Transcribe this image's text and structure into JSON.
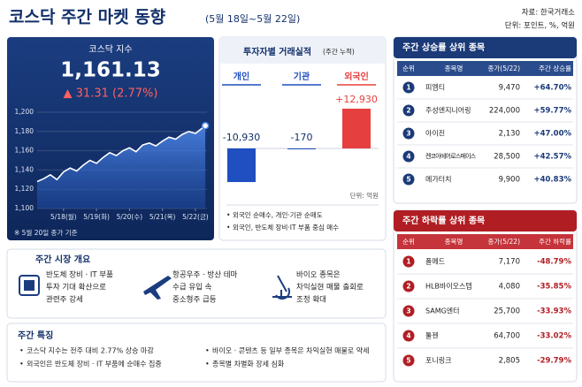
{
  "header": {
    "title": "코스닥 주간 마켓 동향",
    "subtitle": "(5월 18일~5월 22일)",
    "source": "자료: 한국거래소",
    "unit": "단위: 포인트, %, 억원"
  },
  "chart_data": [
    {
      "type": "line",
      "title": "코스닥 지수",
      "index_value": "1,161.13",
      "change": "▲ 31.31 (2.77%)",
      "note": "※ 5월 20일 종가 기준",
      "color": "#ffffff",
      "grid": true,
      "x": [
        -0.8,
        -0.6,
        -0.4,
        -0.2,
        0,
        0.2,
        0.4,
        0.6,
        0.8,
        1,
        1.2,
        1.4,
        1.6,
        1.8,
        2,
        2.2,
        2.4,
        2.6,
        2.8,
        3,
        3.2,
        3.4,
        3.6,
        3.8,
        4,
        4.3
      ],
      "values": [
        1128,
        1131,
        1135,
        1130,
        1138,
        1142,
        1139,
        1145,
        1150,
        1147,
        1153,
        1158,
        1155,
        1160,
        1163,
        1159,
        1166,
        1168,
        1165,
        1170,
        1174,
        1172,
        1177,
        1180,
        1178,
        1186
      ],
      "xlim": [
        -0.8,
        4.35
      ],
      "ylim": [
        1100,
        1200
      ],
      "xticks": [
        {
          "value": 0,
          "label": "5/18(월)"
        },
        {
          "value": 1,
          "label": "5/19(화)"
        },
        {
          "value": 2,
          "label": "5/20(수)"
        },
        {
          "value": 3,
          "label": "5/21(목)"
        },
        {
          "value": 4,
          "label": "5/22(금)"
        }
      ],
      "yticks": [
        {
          "value": 1100,
          "label": "1,100"
        },
        {
          "value": 1120,
          "label": "1,120"
        },
        {
          "value": 1140,
          "label": "1,140"
        },
        {
          "value": 1160,
          "label": "1,160"
        },
        {
          "value": 1180,
          "label": "1,180"
        },
        {
          "value": 1200,
          "label": "1,200"
        }
      ]
    },
    {
      "type": "bar",
      "title": "투자자별 거래실적",
      "subtitle": "(주간 누적)",
      "categories": [
        "개인",
        "기관",
        "외국인"
      ],
      "values": [
        -10930,
        -170,
        12930
      ],
      "value_labels": [
        "-10,930",
        "-170",
        "+12,930"
      ],
      "colors": [
        "#1f4fc1",
        "#1f4fc1",
        "#e5403f"
      ],
      "unit": "단위: 억원",
      "notes": [
        "외국인 순매수, 개인·기관 순매도",
        "외국인, 반도체 장비·IT 부품 중심 매수"
      ]
    }
  ],
  "gainers": {
    "title": "주간 상승률 상위 종목",
    "columns": [
      "순위",
      "종목명",
      "종가(5/22)",
      "주간 상승률"
    ],
    "rows": [
      [
        "1",
        "피엠티",
        "9,470",
        "+64.70%"
      ],
      [
        "2",
        "주성엔지니어링",
        "224,000",
        "+59.77%"
      ],
      [
        "3",
        "아이진",
        "2,130",
        "+47.00%"
      ],
      [
        "4",
        "켄코아에어로스페이스",
        "28,500",
        "+42.57%"
      ],
      [
        "5",
        "메가터치",
        "9,900",
        "+40.83%"
      ]
    ]
  },
  "losers": {
    "title": "주간 하락률 상위 종목",
    "columns": [
      "순위",
      "종목명",
      "종가(5/22)",
      "주간 하락률"
    ],
    "rows": [
      [
        "1",
        "폴메드",
        "7,170",
        "-48.79%"
      ],
      [
        "2",
        "HLB바이오스텝",
        "4,080",
        "-35.85%"
      ],
      [
        "3",
        "SAMG엔터",
        "25,700",
        "-33.93%"
      ],
      [
        "4",
        "툴젠",
        "64,700",
        "-33.02%"
      ],
      [
        "5",
        "포니링크",
        "2,805",
        "-29.79%"
      ]
    ]
  },
  "overview": {
    "title": "주간 시장 개요",
    "items": [
      [
        "반도체 장비 · IT 부품",
        "투자 기대 확산으로",
        "관련주 강세"
      ],
      [
        "항공우주 · 방산 테마",
        "수급 유입 속",
        "중소형주 급등"
      ],
      [
        "바이오 종목은",
        "차익실현 매물 출회로",
        "조정 확대"
      ]
    ]
  },
  "features": {
    "title": "주간 특징",
    "items": [
      "코스닥 지수는 전주 대비 2.77% 상승 마감",
      "외국인은 반도체 장비 · IT 부품에 순매수 집중",
      "바이오 · 콘텐츠 등 일부 종목은 차익실현 매물로 약세",
      "종목별 차별화 장세 심화"
    ]
  }
}
